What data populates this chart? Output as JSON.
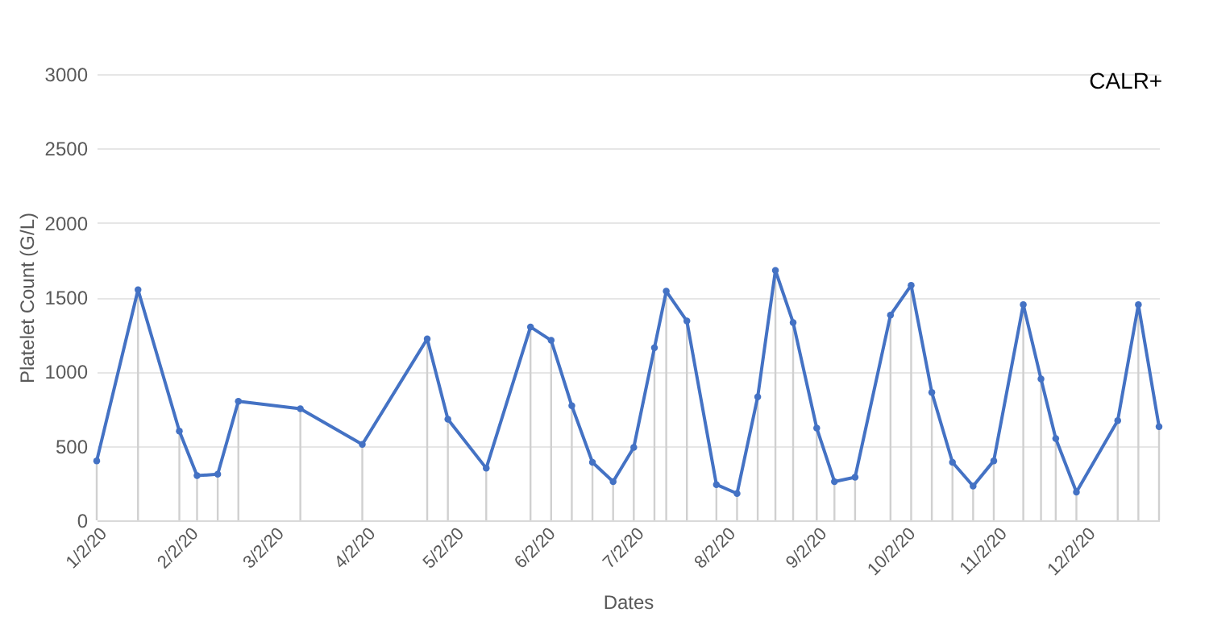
{
  "chart_data": {
    "type": "line",
    "title": "CALR+",
    "xlabel": "Dates",
    "ylabel": "Platelet Count (G/L)",
    "x": [
      "2020-01-02",
      "2020-01-16",
      "2020-01-30",
      "2020-02-05",
      "2020-02-12",
      "2020-02-19",
      "2020-03-11",
      "2020-04-01",
      "2020-04-23",
      "2020-04-30",
      "2020-05-13",
      "2020-05-28",
      "2020-06-04",
      "2020-06-11",
      "2020-06-18",
      "2020-06-25",
      "2020-07-02",
      "2020-07-09",
      "2020-07-13",
      "2020-07-20",
      "2020-07-30",
      "2020-08-06",
      "2020-08-13",
      "2020-08-19",
      "2020-08-25",
      "2020-09-02",
      "2020-09-08",
      "2020-09-15",
      "2020-09-27",
      "2020-10-04",
      "2020-10-11",
      "2020-10-18",
      "2020-10-25",
      "2020-11-01",
      "2020-11-11",
      "2020-11-17",
      "2020-11-22",
      "2020-11-29",
      "2020-12-13",
      "2020-12-20",
      "2020-12-27"
    ],
    "series": [
      {
        "color": "#4472c4",
        "values": [
          400,
          1550,
          600,
          300,
          310,
          800,
          750,
          510,
          1220,
          680,
          350,
          1300,
          1210,
          770,
          390,
          260,
          490,
          1160,
          1540,
          1340,
          240,
          180,
          830,
          1680,
          1330,
          620,
          260,
          290,
          1380,
          1580,
          860,
          390,
          230,
          400,
          1450,
          950,
          550,
          190,
          670,
          1450,
          630
        ],
        "errors": [
          [
            0,
            400
          ],
          [
            0,
            1550
          ],
          [
            0,
            600
          ],
          [
            0,
            300
          ],
          [
            0,
            310
          ],
          [
            0,
            800
          ],
          [
            0,
            750
          ],
          [
            0,
            510
          ],
          [
            0,
            1220
          ],
          [
            0,
            680
          ],
          [
            0,
            350
          ],
          [
            0,
            1300
          ],
          [
            0,
            1210
          ],
          [
            0,
            770
          ],
          [
            0,
            390
          ],
          [
            0,
            260
          ],
          [
            0,
            490
          ],
          [
            0,
            1160
          ],
          [
            0,
            1540
          ],
          [
            0,
            1340
          ],
          [
            0,
            240
          ],
          [
            0,
            180
          ],
          [
            0,
            830
          ],
          [
            0,
            1680
          ],
          [
            0,
            1330
          ],
          [
            0,
            620
          ],
          [
            0,
            260
          ],
          [
            0,
            290
          ],
          [
            0,
            1380
          ],
          [
            0,
            1580
          ],
          [
            0,
            860
          ],
          [
            0,
            390
          ],
          [
            0,
            230
          ],
          [
            0,
            400
          ],
          [
            0,
            1450
          ],
          [
            0,
            950
          ],
          [
            0,
            550
          ],
          [
            0,
            190
          ],
          [
            0,
            670
          ],
          [
            0,
            1450
          ],
          [
            0,
            630
          ]
        ]
      }
    ],
    "xlim": [
      "2020-01-02",
      "2020-12-27"
    ],
    "xticks": [
      {
        "value": "2020-01-02",
        "label": "1/2/20"
      },
      {
        "value": "2020-02-02",
        "label": "2/2/20"
      },
      {
        "value": "2020-03-02",
        "label": "3/2/20"
      },
      {
        "value": "2020-04-02",
        "label": "4/2/20"
      },
      {
        "value": "2020-05-02",
        "label": "5/2/20"
      },
      {
        "value": "2020-06-02",
        "label": "6/2/20"
      },
      {
        "value": "2020-07-02",
        "label": "7/2/20"
      },
      {
        "value": "2020-08-02",
        "label": "8/2/20"
      },
      {
        "value": "2020-09-02",
        "label": "9/2/20"
      },
      {
        "value": "2020-10-02",
        "label": "10/2/20"
      },
      {
        "value": "2020-11-02",
        "label": "11/2/20"
      },
      {
        "value": "2020-12-02",
        "label": "12/2/20"
      }
    ],
    "ylim": [
      0,
      3000
    ],
    "yticks": [
      0,
      500,
      1000,
      1500,
      2000,
      2500,
      3000
    ],
    "grid": "y",
    "marker": "circle",
    "line_style": "solid"
  }
}
